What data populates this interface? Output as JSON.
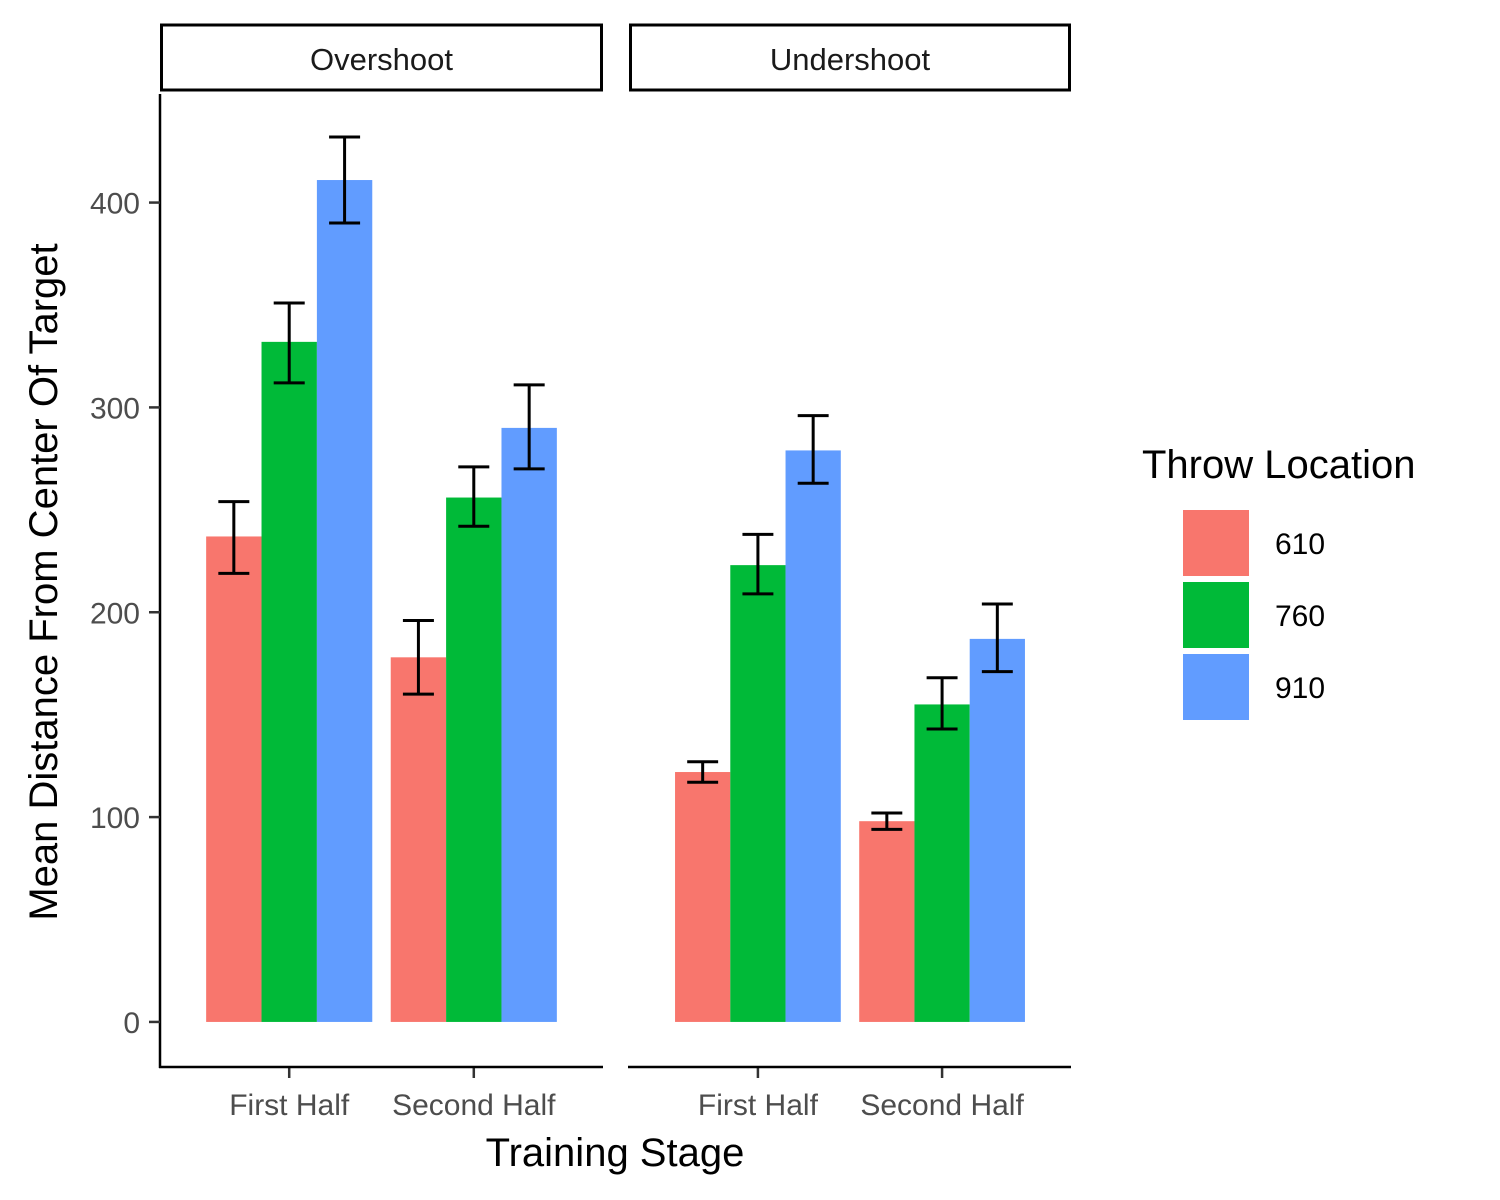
{
  "chart_data": {
    "type": "bar",
    "facets": [
      {
        "label": "Overshoot",
        "categories": [
          "First Half",
          "Second Half"
        ],
        "series": [
          {
            "name": "610",
            "values": [
              237,
              178
            ],
            "error_low": [
              219,
              160
            ],
            "error_high": [
              254,
              196
            ]
          },
          {
            "name": "760",
            "values": [
              332,
              256
            ],
            "error_low": [
              312,
              242
            ],
            "error_high": [
              351,
              271
            ]
          },
          {
            "name": "910",
            "values": [
              411,
              290
            ],
            "error_low": [
              390,
              270
            ],
            "error_high": [
              432,
              311
            ]
          }
        ]
      },
      {
        "label": "Undershoot",
        "categories": [
          "First Half",
          "Second Half"
        ],
        "series": [
          {
            "name": "610",
            "values": [
              122,
              98
            ],
            "error_low": [
              117,
              94
            ],
            "error_high": [
              127,
              102
            ]
          },
          {
            "name": "760",
            "values": [
              223,
              155
            ],
            "error_low": [
              209,
              143
            ],
            "error_high": [
              238,
              168
            ]
          },
          {
            "name": "910",
            "values": [
              279,
              187
            ],
            "error_low": [
              263,
              171
            ],
            "error_high": [
              296,
              204
            ]
          }
        ]
      }
    ],
    "xlabel": "Training Stage",
    "ylabel": "Mean Distance From Center Of Target",
    "yticks": [
      0,
      100,
      200,
      300,
      400
    ],
    "ylim": [
      -22,
      453
    ],
    "legend": {
      "title": "Throw Location",
      "placement": "right",
      "items": [
        {
          "label": "610",
          "color": "#F8766D"
        },
        {
          "label": "760",
          "color": "#00BA38"
        },
        {
          "label": "910",
          "color": "#619CFF"
        }
      ]
    },
    "grid": false
  }
}
